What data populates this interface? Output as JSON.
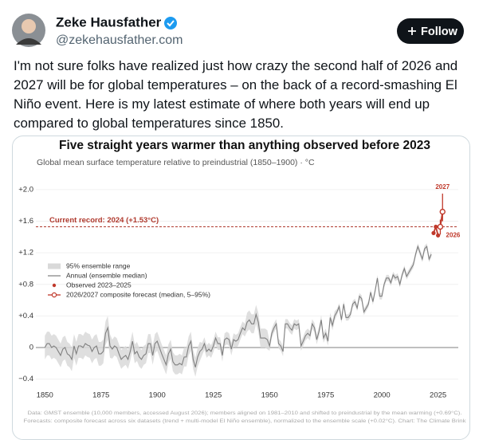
{
  "tweet": {
    "name": "Zeke Hausfather",
    "handle": "@zekehausfather.com",
    "button": "Follow",
    "text": "I'm not sure folks have realized just how crazy the second half of 2026 and 2027 will be for global temperatures – on the back of a record-smashing El Niño event. Here is my latest estimate of where both years will end up compared to global temperatures since 1850."
  },
  "chart_data": {
    "type": "line",
    "title": "Five straight years warmer than anything observed before 2023",
    "subtitle": "Global mean surface temperature relative to preindustrial (1850–1900)  ·  °C",
    "footnotes": [
      "Data: GMST ensemble (10,000 members, accessed August 2026); members aligned on 1981–2010 and shifted to preindustrial by the mean warming (+0.69°C).",
      "Forecasts: composite forecast across six datasets (trend + multi-model El Niño ensemble), normalized to the ensemble scale (+0.02°C). Chart: The Climate Brink"
    ],
    "xlim": [
      1846,
      2034
    ],
    "xticks": [
      1850,
      1875,
      1900,
      1925,
      1950,
      1975,
      2000,
      2025
    ],
    "ylim": [
      -0.5,
      2.1
    ],
    "yticks": [
      {
        "value": -0.4,
        "label": "−0.4"
      },
      0,
      {
        "value": 0.4,
        "label": "+0.4"
      },
      {
        "value": 0.8,
        "label": "+0.8"
      },
      {
        "value": 1.2,
        "label": "+1.2"
      },
      {
        "value": 1.6,
        "label": "+1.6"
      },
      {
        "value": 2.0,
        "label": "+2.0"
      }
    ],
    "grid": true,
    "reference_line": {
      "value": 1.53,
      "label": "Current record: 2024 (+1.53°C)",
      "color": "#b03a2e"
    },
    "x": [
      1850,
      1851,
      1852,
      1853,
      1854,
      1855,
      1856,
      1857,
      1858,
      1859,
      1860,
      1861,
      1862,
      1863,
      1864,
      1865,
      1866,
      1867,
      1868,
      1869,
      1870,
      1871,
      1872,
      1873,
      1874,
      1875,
      1876,
      1877,
      1878,
      1879,
      1880,
      1881,
      1882,
      1883,
      1884,
      1885,
      1886,
      1887,
      1888,
      1889,
      1890,
      1891,
      1892,
      1893,
      1894,
      1895,
      1896,
      1897,
      1898,
      1899,
      1900,
      1901,
      1902,
      1903,
      1904,
      1905,
      1906,
      1907,
      1908,
      1909,
      1910,
      1911,
      1912,
      1913,
      1914,
      1915,
      1916,
      1917,
      1918,
      1919,
      1920,
      1921,
      1922,
      1923,
      1924,
      1925,
      1926,
      1927,
      1928,
      1929,
      1930,
      1931,
      1932,
      1933,
      1934,
      1935,
      1936,
      1937,
      1938,
      1939,
      1940,
      1941,
      1942,
      1943,
      1944,
      1945,
      1946,
      1947,
      1948,
      1949,
      1950,
      1951,
      1952,
      1953,
      1954,
      1955,
      1956,
      1957,
      1958,
      1959,
      1960,
      1961,
      1962,
      1963,
      1964,
      1965,
      1966,
      1967,
      1968,
      1969,
      1970,
      1971,
      1972,
      1973,
      1974,
      1975,
      1976,
      1977,
      1978,
      1979,
      1980,
      1981,
      1982,
      1983,
      1984,
      1985,
      1986,
      1987,
      1988,
      1989,
      1990,
      1991,
      1992,
      1993,
      1994,
      1995,
      1996,
      1997,
      1998,
      1999,
      2000,
      2001,
      2002,
      2003,
      2004,
      2005,
      2006,
      2007,
      2008,
      2009,
      2010,
      2011,
      2012,
      2013,
      2014,
      2015,
      2016,
      2017,
      2018,
      2019,
      2020,
      2021,
      2022
    ],
    "series": [
      {
        "name": "95% ensemble range",
        "color": "#d9d9d9",
        "lower": [
          -0.15,
          -0.1,
          -0.1,
          -0.15,
          -0.13,
          -0.15,
          -0.2,
          -0.25,
          -0.17,
          -0.15,
          -0.23,
          -0.25,
          -0.3,
          -0.13,
          -0.23,
          -0.13,
          -0.13,
          -0.15,
          -0.1,
          -0.12,
          -0.13,
          -0.2,
          -0.15,
          -0.13,
          -0.23,
          -0.23,
          -0.2,
          0.03,
          0.1,
          -0.13,
          -0.14,
          -0.1,
          -0.12,
          -0.2,
          -0.27,
          -0.24,
          -0.22,
          -0.27,
          -0.17,
          -0.04,
          -0.2,
          -0.17,
          -0.24,
          -0.27,
          -0.22,
          -0.2,
          -0.07,
          -0.07,
          -0.22,
          -0.07,
          -0.04,
          -0.12,
          -0.2,
          -0.27,
          -0.34,
          -0.2,
          -0.14,
          -0.3,
          -0.34,
          -0.34,
          -0.32,
          -0.34,
          -0.24,
          -0.24,
          -0.1,
          -0.04,
          -0.27,
          -0.37,
          -0.24,
          -0.17,
          -0.1,
          -0.03,
          -0.13,
          -0.1,
          -0.13,
          -0.06,
          0.04,
          -0.03,
          -0.03,
          -0.18,
          0.02,
          0.04,
          0.02,
          -0.1,
          0.02,
          0.0,
          0.02,
          0.1,
          0.17,
          0.14,
          0.2,
          0.23,
          0.18,
          0.18,
          0.3,
          0.2,
          0.0,
          0.0,
          0.0,
          -0.02,
          -0.04,
          0.12,
          0.19,
          0.24,
          -0.01,
          -0.04,
          -0.11,
          0.24,
          0.24,
          0.19,
          0.16,
          0.24,
          0.22,
          0.24,
          -0.04,
          0.02,
          0.09,
          0.12,
          0.09,
          0.24,
          0.19,
          0.04,
          0.14,
          0.29,
          0.06,
          0.12,
          0.02,
          0.32,
          0.22,
          0.34,
          0.41,
          0.48,
          0.31,
          0.51,
          0.34,
          0.34,
          0.38,
          0.51,
          0.54,
          0.46,
          0.61,
          0.58,
          0.41,
          0.46,
          0.51,
          0.66,
          0.54,
          0.68,
          0.84,
          0.61,
          0.61,
          0.76,
          0.84,
          0.84,
          0.78,
          0.88,
          0.84,
          0.86,
          0.76,
          0.88,
          0.96,
          0.86,
          0.91,
          0.96,
          1.01,
          1.14,
          1.24,
          1.16,
          1.08,
          1.21,
          1.24,
          1.08,
          1.14
        ],
        "upper": [
          0.15,
          0.2,
          0.2,
          0.15,
          0.17,
          0.15,
          0.1,
          0.05,
          0.13,
          0.15,
          0.07,
          0.05,
          0.0,
          0.17,
          0.07,
          0.17,
          0.17,
          0.15,
          0.2,
          0.18,
          0.17,
          0.1,
          0.15,
          0.17,
          0.07,
          0.07,
          0.1,
          0.33,
          0.4,
          0.17,
          0.1,
          0.14,
          0.12,
          0.04,
          -0.03,
          0.0,
          0.02,
          -0.03,
          0.07,
          0.2,
          0.04,
          0.07,
          0.0,
          -0.03,
          0.02,
          0.04,
          0.17,
          0.17,
          0.02,
          0.17,
          0.2,
          0.12,
          0.04,
          -0.03,
          -0.1,
          0.04,
          0.1,
          -0.06,
          -0.1,
          -0.1,
          -0.08,
          -0.1,
          0.0,
          0.0,
          0.14,
          0.2,
          -0.03,
          -0.13,
          0.0,
          0.07,
          0.06,
          0.13,
          0.03,
          0.06,
          0.03,
          0.1,
          0.2,
          0.13,
          0.13,
          -0.02,
          0.18,
          0.2,
          0.18,
          0.06,
          0.18,
          0.16,
          0.18,
          0.26,
          0.33,
          0.3,
          0.44,
          0.47,
          0.42,
          0.42,
          0.54,
          0.44,
          0.24,
          0.24,
          0.24,
          0.22,
          0.08,
          0.24,
          0.31,
          0.36,
          0.11,
          0.08,
          0.01,
          0.36,
          0.36,
          0.31,
          0.28,
          0.36,
          0.34,
          0.36,
          0.08,
          0.14,
          0.21,
          0.24,
          0.21,
          0.36,
          0.31,
          0.16,
          0.26,
          0.41,
          0.18,
          0.24,
          0.14,
          0.44,
          0.34,
          0.46,
          0.49,
          0.56,
          0.39,
          0.59,
          0.42,
          0.42,
          0.46,
          0.59,
          0.62,
          0.54,
          0.69,
          0.66,
          0.49,
          0.54,
          0.59,
          0.74,
          0.62,
          0.76,
          0.92,
          0.69,
          0.69,
          0.84,
          0.92,
          0.92,
          0.86,
          0.96,
          0.92,
          0.94,
          0.84,
          0.96,
          1.04,
          0.94,
          0.99,
          1.04,
          1.09,
          1.22,
          1.32,
          1.24,
          1.16,
          1.29,
          1.32,
          1.16,
          1.22
        ]
      },
      {
        "name": "Annual (ensemble median)",
        "color": "#7f7f7f",
        "values": [
          0.0,
          0.05,
          0.05,
          0.0,
          0.02,
          0.0,
          -0.05,
          -0.1,
          -0.02,
          0.0,
          -0.08,
          -0.1,
          -0.15,
          0.02,
          -0.08,
          0.02,
          0.02,
          0.0,
          0.05,
          0.03,
          0.02,
          -0.05,
          0.0,
          0.02,
          -0.08,
          -0.08,
          -0.05,
          0.18,
          0.25,
          0.02,
          -0.02,
          0.02,
          0.0,
          -0.08,
          -0.15,
          -0.12,
          -0.1,
          -0.15,
          -0.05,
          0.08,
          -0.08,
          -0.05,
          -0.12,
          -0.15,
          -0.1,
          -0.08,
          0.05,
          0.05,
          -0.1,
          0.05,
          0.08,
          0.0,
          -0.08,
          -0.15,
          -0.22,
          -0.08,
          -0.02,
          -0.18,
          -0.22,
          -0.22,
          -0.2,
          -0.22,
          -0.12,
          -0.12,
          0.02,
          0.08,
          -0.15,
          -0.25,
          -0.12,
          -0.05,
          -0.02,
          0.05,
          -0.05,
          -0.02,
          -0.05,
          0.02,
          0.12,
          0.05,
          0.05,
          -0.1,
          0.1,
          0.12,
          0.1,
          -0.02,
          0.1,
          0.08,
          0.1,
          0.18,
          0.25,
          0.22,
          0.32,
          0.35,
          0.3,
          0.3,
          0.42,
          0.32,
          0.12,
          0.12,
          0.12,
          0.1,
          0.02,
          0.18,
          0.25,
          0.3,
          0.05,
          0.02,
          -0.05,
          0.3,
          0.3,
          0.25,
          0.22,
          0.3,
          0.28,
          0.3,
          0.02,
          0.08,
          0.15,
          0.18,
          0.15,
          0.3,
          0.25,
          0.1,
          0.2,
          0.35,
          0.12,
          0.18,
          0.08,
          0.38,
          0.28,
          0.4,
          0.45,
          0.52,
          0.35,
          0.55,
          0.38,
          0.38,
          0.42,
          0.55,
          0.58,
          0.5,
          0.65,
          0.62,
          0.45,
          0.5,
          0.55,
          0.7,
          0.58,
          0.72,
          0.88,
          0.65,
          0.65,
          0.8,
          0.88,
          0.88,
          0.82,
          0.92,
          0.88,
          0.9,
          0.8,
          0.92,
          1.0,
          0.9,
          0.95,
          1.0,
          1.05,
          1.18,
          1.28,
          1.2,
          1.12,
          1.25,
          1.28,
          1.12,
          1.18
        ]
      },
      {
        "name": "Observed 2023–2025",
        "color": "#c0392b",
        "x": [
          2023,
          2024,
          2025
        ],
        "values": [
          1.45,
          1.53,
          1.42
        ]
      },
      {
        "name": "2026/2027 composite forecast (median, 5–95%)",
        "color": "#c0392b",
        "x": [
          2026,
          2027
        ],
        "values": [
          1.53,
          1.72
        ],
        "lower": [
          1.43,
          1.6
        ],
        "upper": [
          1.62,
          1.95
        ]
      }
    ]
  }
}
